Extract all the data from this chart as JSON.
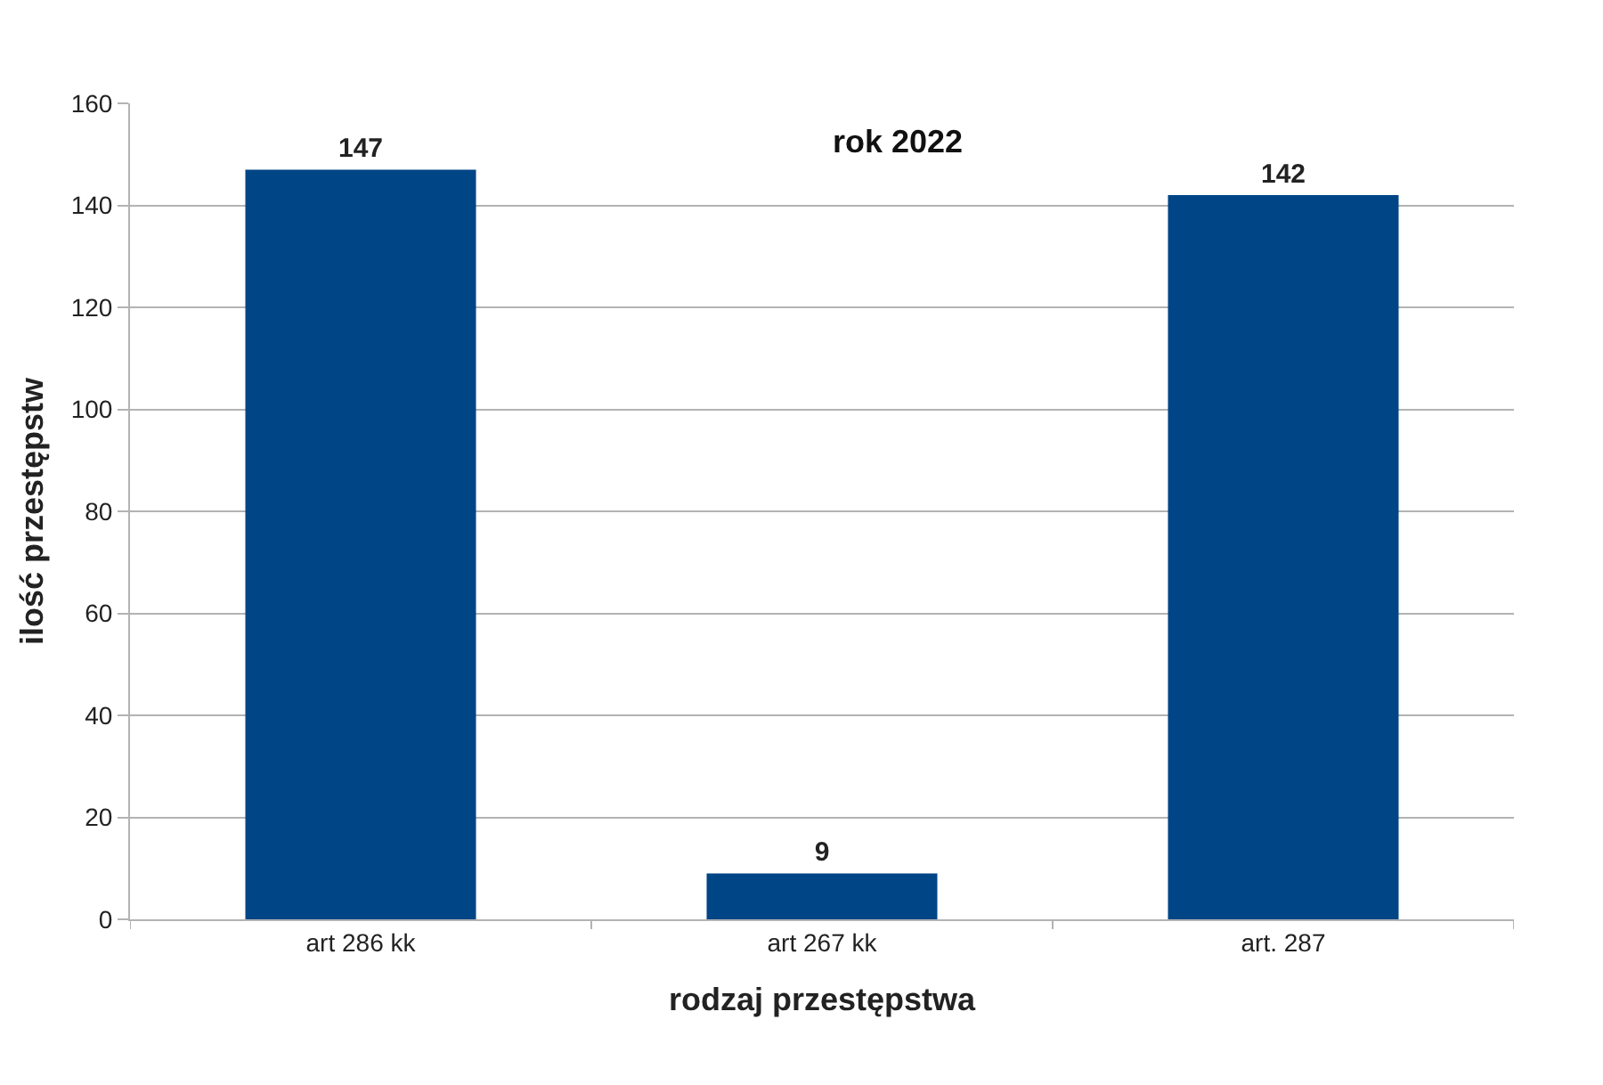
{
  "chart_data": {
    "type": "bar",
    "title": "rok 2022",
    "xlabel": "rodzaj przestępstwa",
    "ylabel": "ilość przestępstw",
    "categories": [
      "art 286 kk",
      "art 267 kk",
      "art. 287"
    ],
    "series": [
      {
        "color": "#004586",
        "values": [
          147,
          9,
          142
        ]
      }
    ],
    "ylim": [
      0,
      160
    ],
    "yticks": [
      0,
      20,
      40,
      60,
      80,
      100,
      120,
      140,
      160
    ],
    "grid": "y",
    "data_labels": true
  }
}
